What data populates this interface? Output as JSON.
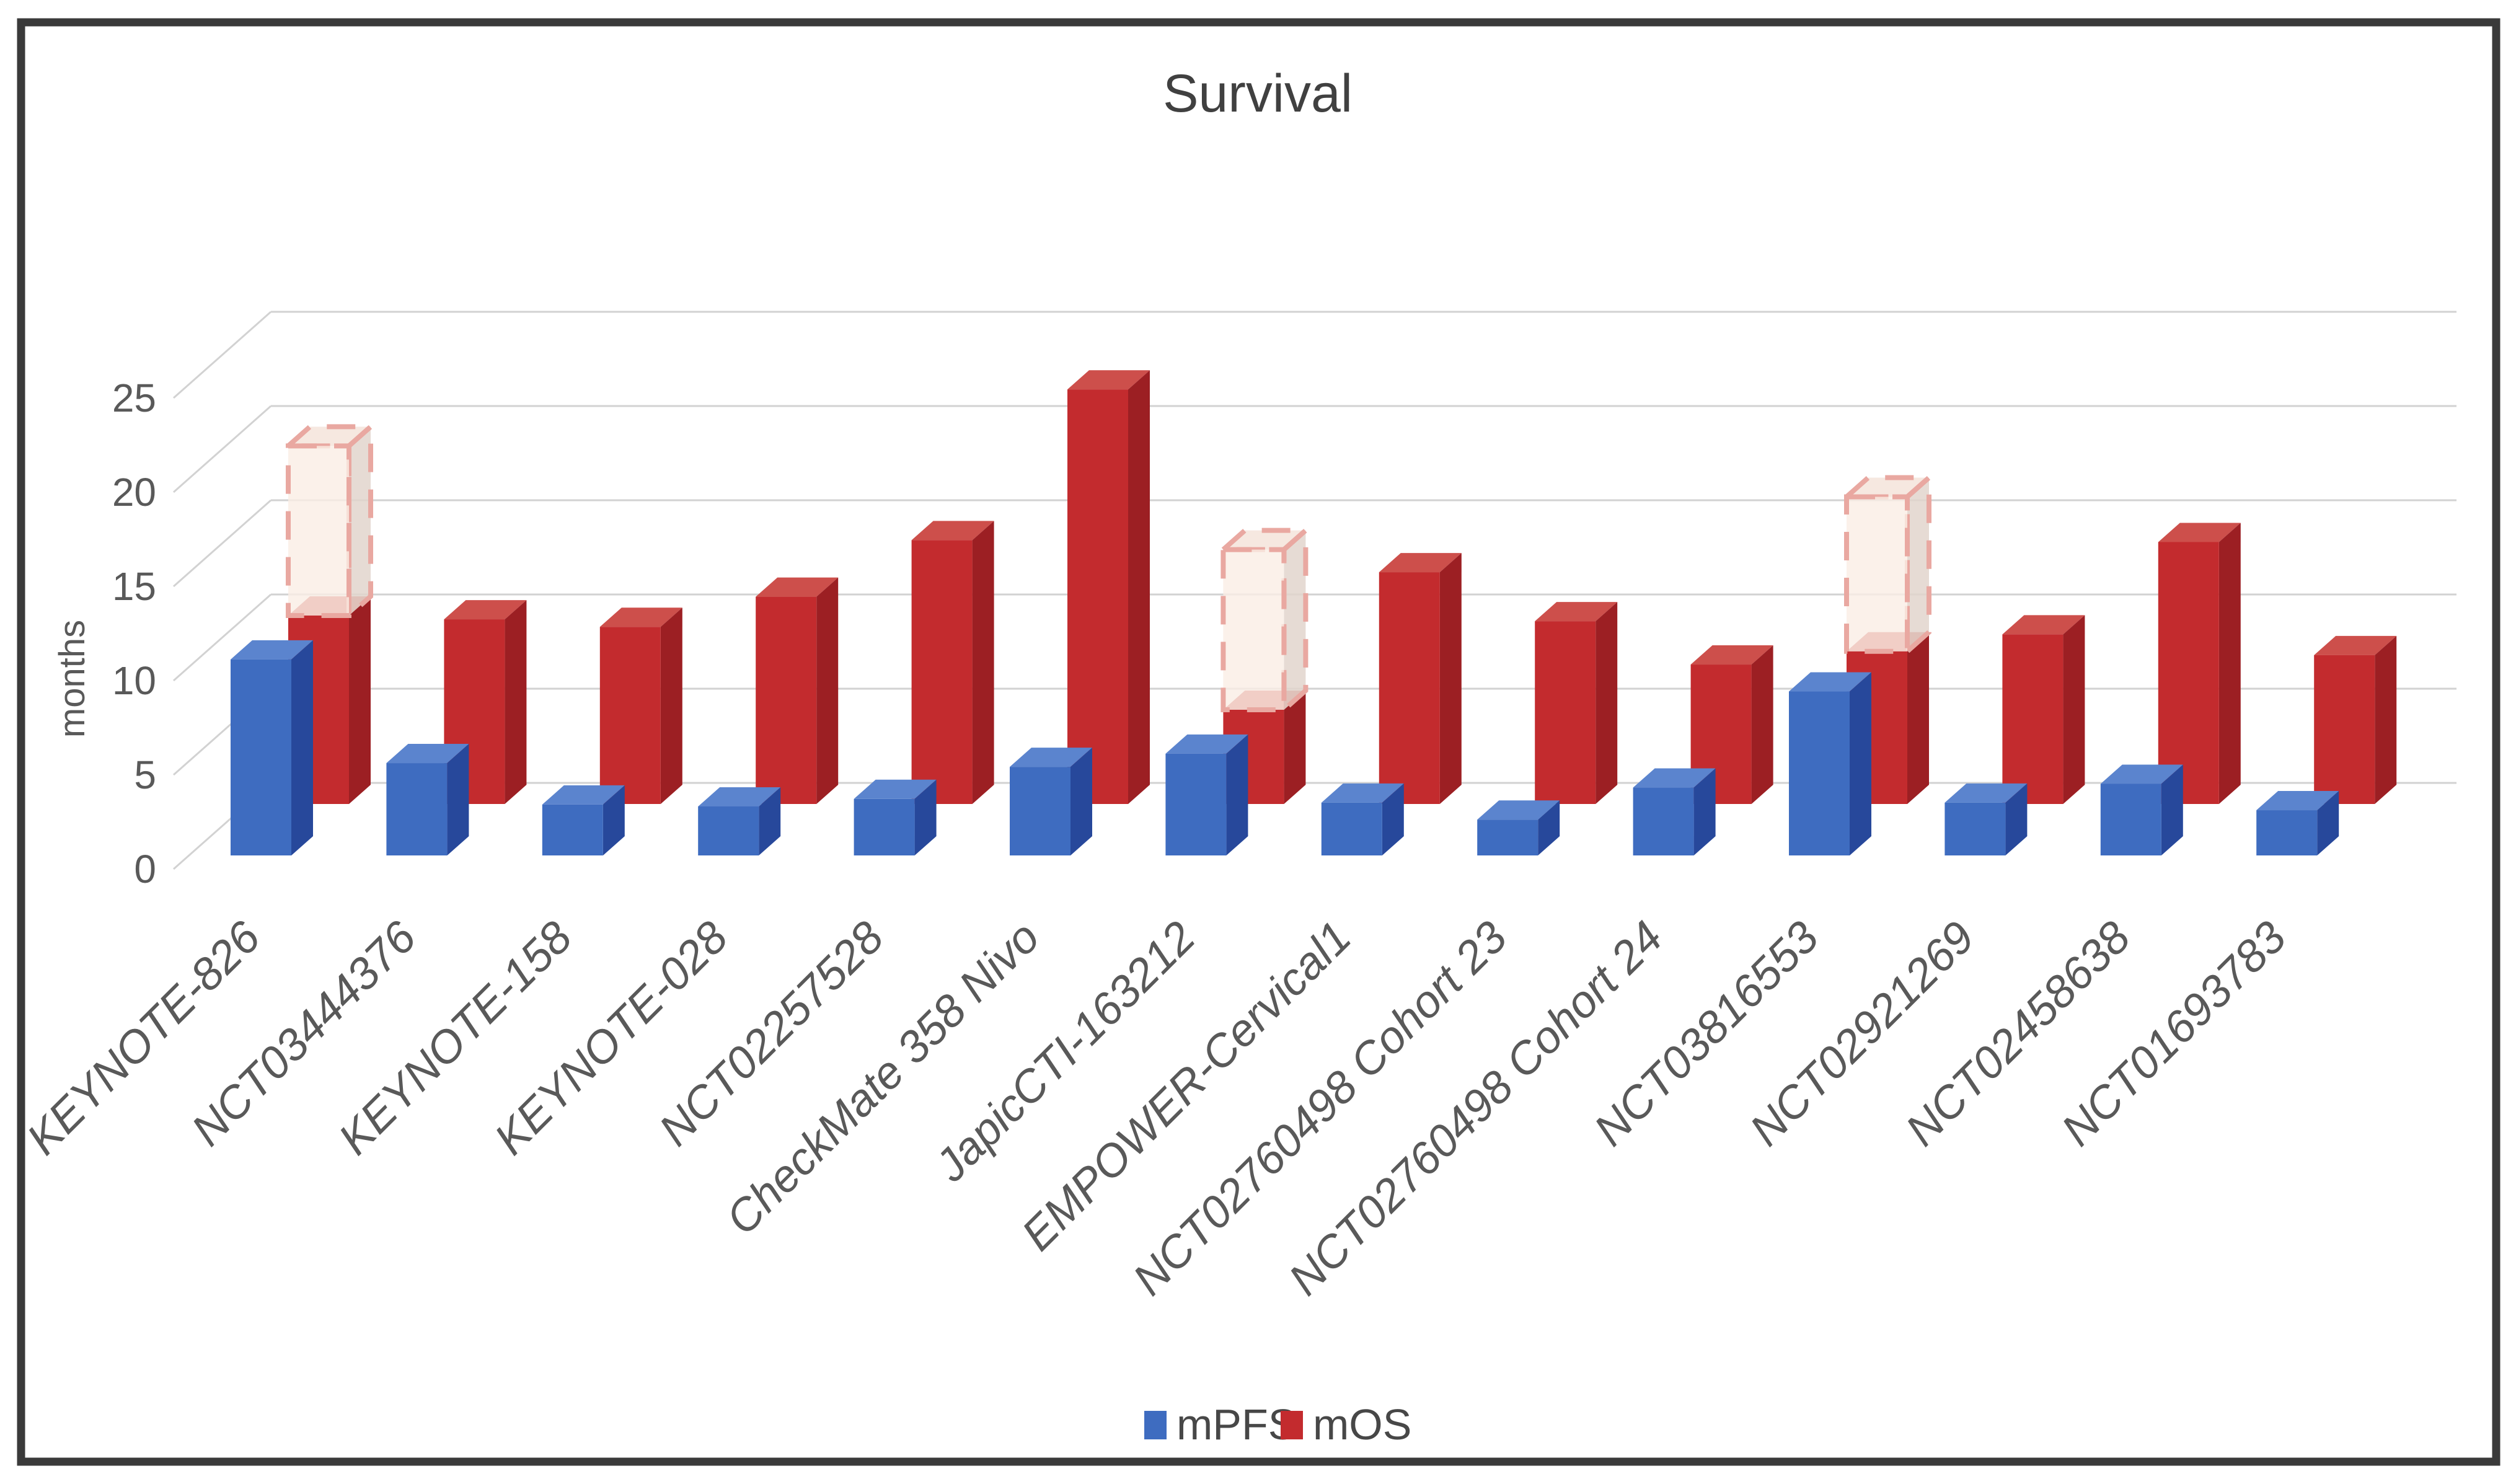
{
  "chart_data": {
    "type": "bar",
    "projection": "3d",
    "title": "Survival",
    "ylabel": "months",
    "ylim": [
      0,
      25
    ],
    "yticks": [
      0,
      5,
      10,
      15,
      20,
      25
    ],
    "grid": true,
    "legend_position": "bottom",
    "categories": [
      "KEYNOTE-826",
      "NCT03444376",
      "KEYNOTE-158",
      "KEYNOTE-028",
      "NCT02257528",
      "CheckMate 358 Nivo",
      "JapicCTI-163212",
      "EMPOWER-Cervical1",
      "NCT02760498 Cohort 23",
      "NCT02760498 Cohort 24",
      "NCT03816553",
      "NCT02921269",
      "NCT02458638",
      "NCT01693783"
    ],
    "series": [
      {
        "name": "mPFS",
        "color": "#3E6CC0",
        "values": [
          10.4,
          4.9,
          2.7,
          2.6,
          3.0,
          4.7,
          5.4,
          2.8,
          1.9,
          3.6,
          8.7,
          2.8,
          3.8,
          2.4
        ]
      },
      {
        "name": "mOS",
        "color": "#C32B2E",
        "values": [
          10.0,
          9.8,
          9.4,
          11.0,
          14.0,
          22.0,
          5.0,
          12.3,
          9.7,
          7.4,
          8.1,
          9.0,
          13.9,
          7.9
        ],
        "dashed_extension_to": [
          19.0,
          null,
          null,
          null,
          null,
          null,
          13.5,
          null,
          null,
          null,
          16.3,
          null,
          null,
          null
        ]
      }
    ]
  },
  "colors": {
    "mpfs_front": "#3E6CC0",
    "mpfs_top": "#5B84CE",
    "mpfs_side": "#27489B",
    "mos_front": "#C32B2E",
    "mos_top": "#CD4F4B",
    "mos_side": "#9C1F23",
    "dash_fill": "rgba(250,238,229,0.80)",
    "dash_fill_top": "rgba(244,228,218,0.85)",
    "dash_fill_side": "rgba(226,213,205,0.85)",
    "dash_border": "#E9A8A1",
    "gridline": "#D2D2D2",
    "tick_text": "#595959",
    "title_text": "#404040",
    "frame": "#3A3A3A",
    "background": "#FFFFFF"
  }
}
